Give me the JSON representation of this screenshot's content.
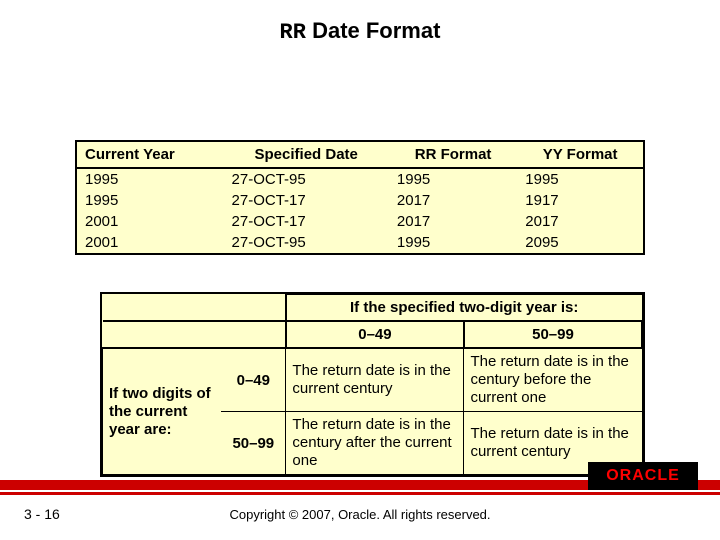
{
  "title": {
    "code": "RR",
    "rest": " Date Format"
  },
  "table1": {
    "columns": [
      "Current Year",
      "Specified Date",
      "RR Format",
      "YY Format"
    ],
    "rows": [
      [
        "1995",
        "27-OCT-95",
        "1995",
        "1995"
      ],
      [
        "1995",
        "27-OCT-17",
        "2017",
        "1917"
      ],
      [
        "2001",
        "27-OCT-17",
        "2017",
        "2017"
      ],
      [
        "2001",
        "27-OCT-95",
        "1995",
        "2095"
      ]
    ],
    "background_color": "#ffffcc",
    "border_color": "#000000"
  },
  "table2": {
    "top_header": "If the specified two-digit year is:",
    "col_headers": [
      "0–49",
      "50–99"
    ],
    "row_label": "If two digits of the current year are:",
    "row_ranges": [
      "0–49",
      "50–99"
    ],
    "cells": [
      [
        "The return date is in the current century",
        "The return date is in the century before the current one"
      ],
      [
        "The return date is in the century after the current one",
        "The return date is in the current century"
      ]
    ],
    "background_color": "#ffffcc",
    "border_color": "#000000"
  },
  "footer": {
    "page": "3 - 16",
    "copyright": "Copyright © 2007, Oracle. All rights reserved.",
    "logo_text": "ORACLE",
    "bar_color": "#cc0000",
    "logo_bg": "#000000",
    "logo_fg": "#ff0000"
  }
}
